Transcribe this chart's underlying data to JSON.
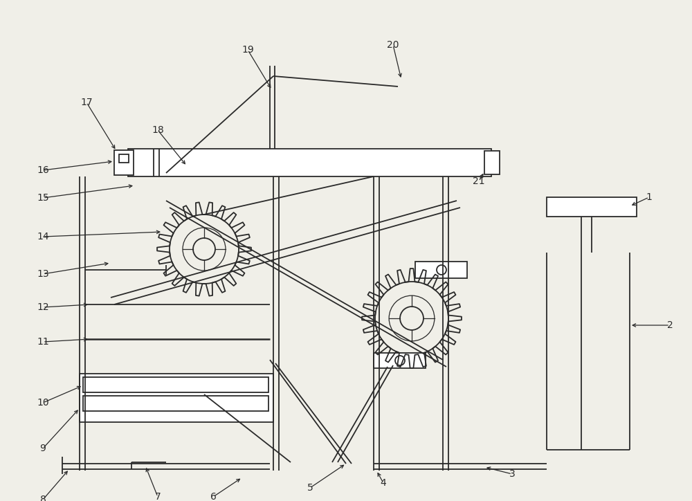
{
  "bg_color": "#f0efe8",
  "line_color": "#2a2a2a",
  "fig_width": 10.0,
  "fig_height": 7.24,
  "lw": 1.3
}
